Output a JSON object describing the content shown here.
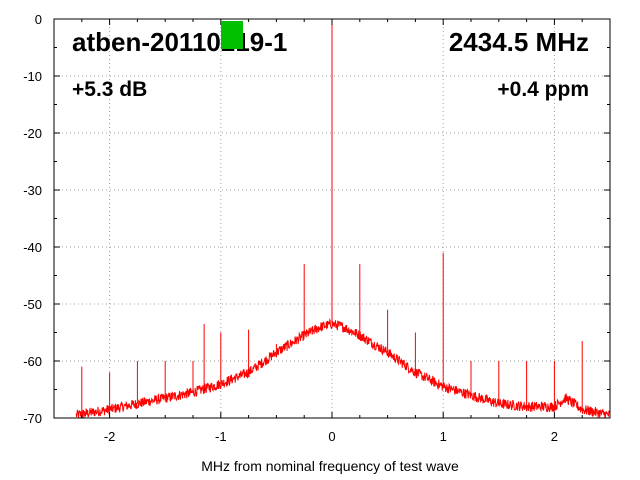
{
  "chart_data": {
    "type": "line",
    "title": "",
    "xlabel": "MHz from nominal frequency of test wave",
    "ylabel": "",
    "xlim": [
      -2.5,
      2.5
    ],
    "ylim": [
      -70,
      0
    ],
    "x_ticks": [
      -2,
      -1,
      0,
      1,
      2
    ],
    "x_tick_labels": [
      "-2",
      "-1",
      "0",
      "1",
      "2"
    ],
    "y_ticks": [
      0,
      -10,
      -20,
      -30,
      -40,
      -50,
      -60,
      -70
    ],
    "y_tick_labels": [
      "0",
      "-10",
      "-20",
      "-30",
      "-40",
      "-50",
      "-60",
      "-70"
    ],
    "grid": true,
    "legend": "none",
    "series": [
      {
        "color": "#ff0000",
        "noise_floor": {
          "x": [
            -2.3,
            -2.0,
            -1.75,
            -1.5,
            -1.25,
            -1.0,
            -0.75,
            -0.5,
            -0.25,
            -0.1,
            0.0,
            0.1,
            0.25,
            0.5,
            0.75,
            1.0,
            1.25,
            1.5,
            1.75,
            2.0,
            2.1,
            2.25,
            2.5
          ],
          "y": [
            -69.5,
            -68.5,
            -67.5,
            -66.5,
            -65.5,
            -64.0,
            -62.0,
            -58.5,
            -55.5,
            -54.0,
            -53.5,
            -54.0,
            -55.5,
            -58.5,
            -62.0,
            -64.5,
            -66.0,
            -67.5,
            -68.0,
            -68.0,
            -66.5,
            -68.5,
            -69.5
          ]
        },
        "spurs": {
          "x": [
            -2.25,
            -2.0,
            -1.75,
            -1.5,
            -1.25,
            -1.15,
            -1.0,
            -0.75,
            -0.5,
            -0.25,
            0.0,
            0.25,
            0.5,
            0.75,
            1.0,
            1.25,
            1.5,
            1.75,
            2.0,
            2.25
          ],
          "y": [
            -61,
            -62,
            -60,
            -60,
            -60,
            -53.5,
            -55,
            -54.5,
            -57,
            -43,
            0,
            -43,
            -51,
            -55,
            -41,
            -60,
            -60,
            -60,
            -60,
            -56.5
          ]
        }
      }
    ]
  },
  "overlays": {
    "device_name": "atben-20110219-1",
    "frequency": "2434.5 MHz",
    "gain": "+5.3 dB",
    "ppm": "+0.4 ppm"
  },
  "marker_color": "#00c000"
}
